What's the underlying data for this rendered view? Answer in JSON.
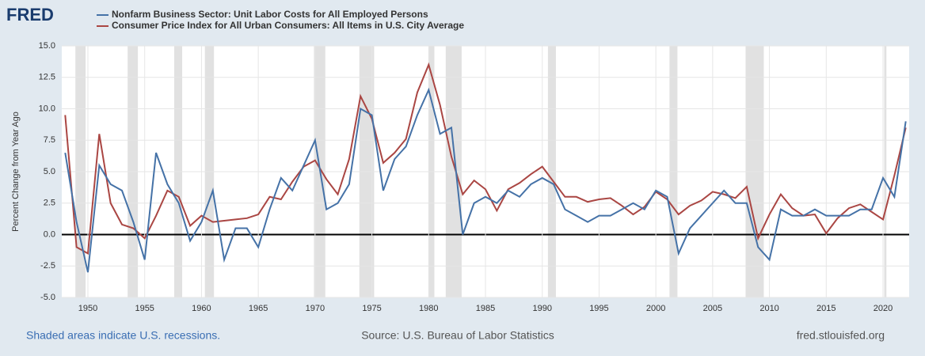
{
  "chart_data": {
    "type": "line",
    "logo": "FRED",
    "ylabel": "Percent Change from Year Ago",
    "note": "Shaded areas indicate U.S. recessions.",
    "source": "Source: U.S. Bureau of Labor Statistics",
    "url": "fred.stlouisfed.org",
    "x": [
      1948,
      1949,
      1950,
      1951,
      1952,
      1953,
      1954,
      1955,
      1956,
      1957,
      1958,
      1959,
      1960,
      1961,
      1962,
      1963,
      1964,
      1965,
      1966,
      1967,
      1968,
      1969,
      1970,
      1971,
      1972,
      1973,
      1974,
      1975,
      1976,
      1977,
      1978,
      1979,
      1980,
      1981,
      1982,
      1983,
      1984,
      1985,
      1986,
      1987,
      1988,
      1989,
      1990,
      1991,
      1992,
      1993,
      1994,
      1995,
      1996,
      1997,
      1998,
      1999,
      2000,
      2001,
      2002,
      2003,
      2004,
      2005,
      2006,
      2007,
      2008,
      2009,
      2010,
      2011,
      2012,
      2013,
      2014,
      2015,
      2016,
      2017,
      2018,
      2019,
      2020,
      2021,
      2022
    ],
    "series": [
      {
        "name": "Nonfarm Business Sector: Unit Labor Costs for All Employed Persons",
        "color": "#4572a7",
        "values": [
          6.5,
          1.0,
          -3.0,
          5.5,
          4.0,
          3.5,
          1.0,
          -2.0,
          6.5,
          4.0,
          2.5,
          -0.5,
          1.0,
          3.5,
          -2.0,
          0.5,
          0.5,
          -1.0,
          2.0,
          4.5,
          3.5,
          5.5,
          7.5,
          2.0,
          2.5,
          4.0,
          10.0,
          9.5,
          3.5,
          6.0,
          7.0,
          9.5,
          11.5,
          8.0,
          8.5,
          0.0,
          2.5,
          3.0,
          2.5,
          3.5,
          3.0,
          4.0,
          4.5,
          4.0,
          2.0,
          1.5,
          1.0,
          1.5,
          1.5,
          2.0,
          2.5,
          2.0,
          3.5,
          3.0,
          -1.5,
          0.5,
          1.5,
          2.5,
          3.5,
          2.5,
          2.5,
          -1.0,
          -2.0,
          2.0,
          1.5,
          1.5,
          2.0,
          1.5,
          1.5,
          1.5,
          2.0,
          2.0,
          4.5,
          3.0,
          9.0
        ]
      },
      {
        "name": "Consumer Price Index for All Urban Consumers: All Items in U.S. City Average",
        "color": "#aa4643",
        "values": [
          9.5,
          -1.0,
          -1.5,
          8.0,
          2.5,
          0.8,
          0.5,
          -0.3,
          1.5,
          3.5,
          3.0,
          0.7,
          1.5,
          1.0,
          1.1,
          1.2,
          1.3,
          1.6,
          3.0,
          2.8,
          4.2,
          5.4,
          5.9,
          4.4,
          3.2,
          6.0,
          11.0,
          9.2,
          5.7,
          6.5,
          7.6,
          11.3,
          13.5,
          10.3,
          6.2,
          3.2,
          4.3,
          3.6,
          1.9,
          3.6,
          4.1,
          4.8,
          5.4,
          4.2,
          3.0,
          3.0,
          2.6,
          2.8,
          2.9,
          2.3,
          1.6,
          2.2,
          3.4,
          2.8,
          1.6,
          2.3,
          2.7,
          3.4,
          3.2,
          2.9,
          3.8,
          -0.3,
          1.6,
          3.2,
          2.1,
          1.5,
          1.6,
          0.1,
          1.3,
          2.1,
          2.4,
          1.8,
          1.2,
          4.7,
          8.5
        ]
      }
    ],
    "recessions": [
      [
        1948.9,
        1949.8
      ],
      [
        1953.5,
        1954.4
      ],
      [
        1957.6,
        1958.3
      ],
      [
        1960.3,
        1961.1
      ],
      [
        1969.9,
        1970.9
      ],
      [
        1973.9,
        1975.2
      ],
      [
        1980.0,
        1980.5
      ],
      [
        1981.5,
        1982.9
      ],
      [
        1990.5,
        1991.2
      ],
      [
        2001.2,
        2001.9
      ],
      [
        2007.9,
        2009.5
      ],
      [
        2020.1,
        2020.3
      ]
    ],
    "recession_color": "#e1e1e1",
    "xlim": [
      1947.7,
      2022.3
    ],
    "xticks": [
      1950,
      1955,
      1960,
      1965,
      1970,
      1975,
      1980,
      1985,
      1990,
      1995,
      2000,
      2005,
      2010,
      2015,
      2020
    ],
    "ylim": [
      -5,
      15
    ],
    "yticks": [
      {
        "value": -5,
        "label": "-5.0"
      },
      {
        "value": -2.5,
        "label": "-2.5"
      },
      {
        "value": 0,
        "label": "0.0"
      },
      {
        "value": 2.5,
        "label": "2.5"
      },
      {
        "value": 5,
        "label": "5.0"
      },
      {
        "value": 7.5,
        "label": "7.5"
      },
      {
        "value": 10,
        "label": "10.0"
      },
      {
        "value": 12.5,
        "label": "12.5"
      },
      {
        "value": 15,
        "label": "15.0"
      }
    ],
    "grid": true
  }
}
